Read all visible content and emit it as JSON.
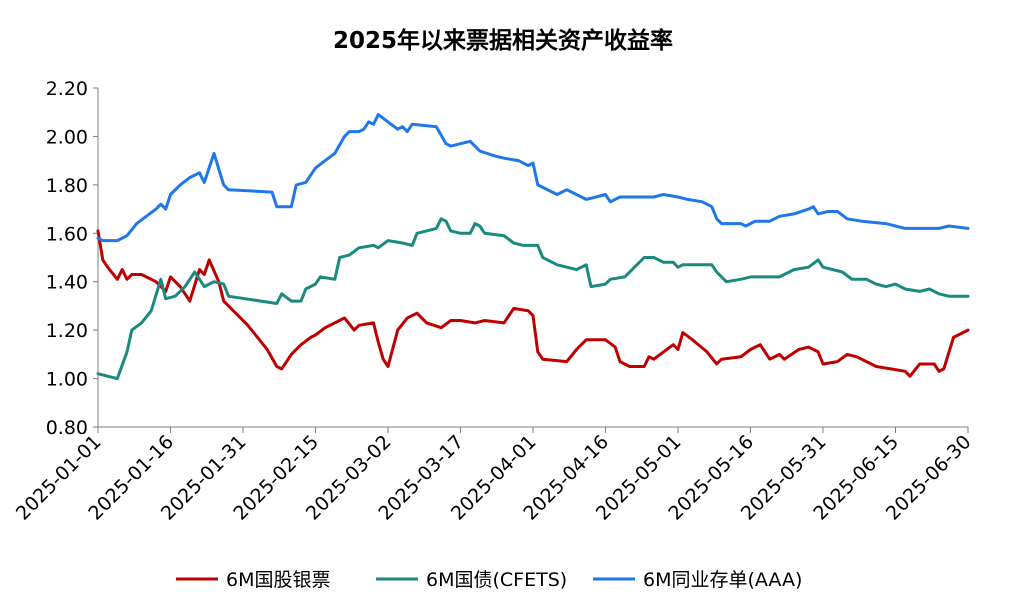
{
  "chart_data": {
    "type": "line",
    "title": "2025年以来票据相关资产收益率",
    "xlabel": "",
    "ylabel": "",
    "ylim": [
      0.8,
      2.2
    ],
    "yticks": [
      "0.80",
      "1.00",
      "1.20",
      "1.40",
      "1.60",
      "1.80",
      "2.00",
      "2.20"
    ],
    "xlim": [
      "2025-01-01",
      "2025-06-30"
    ],
    "xticks": [
      "2025-01-01",
      "2025-01-16",
      "2025-01-31",
      "2025-02-15",
      "2025-03-02",
      "2025-03-17",
      "2025-04-01",
      "2025-04-16",
      "2025-05-01",
      "2025-05-16",
      "2025-05-31",
      "2025-06-15",
      "2025-06-30"
    ],
    "grid": false,
    "legend_position": "bottom",
    "series": [
      {
        "name": "6M国股银票",
        "color": "#C00000",
        "points": [
          [
            "2025-01-01",
            1.61
          ],
          [
            "2025-01-02",
            1.49
          ],
          [
            "2025-01-03",
            1.46
          ],
          [
            "2025-01-05",
            1.41
          ],
          [
            "2025-01-06",
            1.45
          ],
          [
            "2025-01-07",
            1.41
          ],
          [
            "2025-01-08",
            1.43
          ],
          [
            "2025-01-10",
            1.43
          ],
          [
            "2025-01-13",
            1.4
          ],
          [
            "2025-01-15",
            1.36
          ],
          [
            "2025-01-16",
            1.42
          ],
          [
            "2025-01-18",
            1.38
          ],
          [
            "2025-01-20",
            1.32
          ],
          [
            "2025-01-22",
            1.45
          ],
          [
            "2025-01-23",
            1.43
          ],
          [
            "2025-01-24",
            1.49
          ],
          [
            "2025-01-26",
            1.4
          ],
          [
            "2025-01-27",
            1.32
          ],
          [
            "2025-02-01",
            1.22
          ],
          [
            "2025-02-05",
            1.12
          ],
          [
            "2025-02-07",
            1.05
          ],
          [
            "2025-02-08",
            1.04
          ],
          [
            "2025-02-10",
            1.1
          ],
          [
            "2025-02-12",
            1.14
          ],
          [
            "2025-02-14",
            1.17
          ],
          [
            "2025-02-15",
            1.18
          ],
          [
            "2025-02-17",
            1.21
          ],
          [
            "2025-02-19",
            1.23
          ],
          [
            "2025-02-21",
            1.25
          ],
          [
            "2025-02-23",
            1.2
          ],
          [
            "2025-02-24",
            1.22
          ],
          [
            "2025-02-27",
            1.23
          ],
          [
            "2025-02-28",
            1.15
          ],
          [
            "2025-03-01",
            1.08
          ],
          [
            "2025-03-02",
            1.05
          ],
          [
            "2025-03-04",
            1.2
          ],
          [
            "2025-03-06",
            1.25
          ],
          [
            "2025-03-08",
            1.27
          ],
          [
            "2025-03-10",
            1.23
          ],
          [
            "2025-03-13",
            1.21
          ],
          [
            "2025-03-15",
            1.24
          ],
          [
            "2025-03-17",
            1.24
          ],
          [
            "2025-03-20",
            1.23
          ],
          [
            "2025-03-22",
            1.24
          ],
          [
            "2025-03-26",
            1.23
          ],
          [
            "2025-03-28",
            1.29
          ],
          [
            "2025-03-31",
            1.28
          ],
          [
            "2025-04-01",
            1.26
          ],
          [
            "2025-04-02",
            1.11
          ],
          [
            "2025-04-03",
            1.08
          ],
          [
            "2025-04-08",
            1.07
          ],
          [
            "2025-04-10",
            1.12
          ],
          [
            "2025-04-12",
            1.16
          ],
          [
            "2025-04-16",
            1.16
          ],
          [
            "2025-04-18",
            1.13
          ],
          [
            "2025-04-19",
            1.07
          ],
          [
            "2025-04-21",
            1.05
          ],
          [
            "2025-04-24",
            1.05
          ],
          [
            "2025-04-25",
            1.09
          ],
          [
            "2025-04-26",
            1.08
          ],
          [
            "2025-04-28",
            1.11
          ],
          [
            "2025-04-30",
            1.14
          ],
          [
            "2025-05-01",
            1.12
          ],
          [
            "2025-05-02",
            1.19
          ],
          [
            "2025-05-04",
            1.16
          ],
          [
            "2025-05-07",
            1.11
          ],
          [
            "2025-05-09",
            1.06
          ],
          [
            "2025-05-10",
            1.08
          ],
          [
            "2025-05-14",
            1.09
          ],
          [
            "2025-05-16",
            1.12
          ],
          [
            "2025-05-18",
            1.14
          ],
          [
            "2025-05-20",
            1.08
          ],
          [
            "2025-05-22",
            1.1
          ],
          [
            "2025-05-23",
            1.08
          ],
          [
            "2025-05-26",
            1.12
          ],
          [
            "2025-05-28",
            1.13
          ],
          [
            "2025-05-30",
            1.11
          ],
          [
            "2025-05-31",
            1.06
          ],
          [
            "2025-06-03",
            1.07
          ],
          [
            "2025-06-05",
            1.1
          ],
          [
            "2025-06-07",
            1.09
          ],
          [
            "2025-06-09",
            1.07
          ],
          [
            "2025-06-11",
            1.05
          ],
          [
            "2025-06-14",
            1.04
          ],
          [
            "2025-06-17",
            1.03
          ],
          [
            "2025-06-18",
            1.01
          ],
          [
            "2025-06-20",
            1.06
          ],
          [
            "2025-06-23",
            1.06
          ],
          [
            "2025-06-24",
            1.03
          ],
          [
            "2025-06-25",
            1.04
          ],
          [
            "2025-06-27",
            1.17
          ],
          [
            "2025-06-30",
            1.2
          ]
        ]
      },
      {
        "name": "6M国债(CFETS)",
        "color": "#1A8A7E",
        "points": [
          [
            "2025-01-01",
            1.02
          ],
          [
            "2025-01-03",
            1.01
          ],
          [
            "2025-01-05",
            1.0
          ],
          [
            "2025-01-07",
            1.11
          ],
          [
            "2025-01-08",
            1.2
          ],
          [
            "2025-01-10",
            1.23
          ],
          [
            "2025-01-12",
            1.28
          ],
          [
            "2025-01-14",
            1.41
          ],
          [
            "2025-01-15",
            1.33
          ],
          [
            "2025-01-17",
            1.34
          ],
          [
            "2025-01-19",
            1.38
          ],
          [
            "2025-01-21",
            1.44
          ],
          [
            "2025-01-23",
            1.38
          ],
          [
            "2025-01-25",
            1.4
          ],
          [
            "2025-01-27",
            1.39
          ],
          [
            "2025-01-28",
            1.34
          ],
          [
            "2025-02-07",
            1.31
          ],
          [
            "2025-02-08",
            1.35
          ],
          [
            "2025-02-10",
            1.32
          ],
          [
            "2025-02-12",
            1.32
          ],
          [
            "2025-02-13",
            1.37
          ],
          [
            "2025-02-15",
            1.39
          ],
          [
            "2025-02-16",
            1.42
          ],
          [
            "2025-02-19",
            1.41
          ],
          [
            "2025-02-20",
            1.5
          ],
          [
            "2025-02-22",
            1.51
          ],
          [
            "2025-02-24",
            1.54
          ],
          [
            "2025-02-27",
            1.55
          ],
          [
            "2025-02-28",
            1.54
          ],
          [
            "2025-03-02",
            1.57
          ],
          [
            "2025-03-05",
            1.56
          ],
          [
            "2025-03-07",
            1.55
          ],
          [
            "2025-03-08",
            1.6
          ],
          [
            "2025-03-10",
            1.61
          ],
          [
            "2025-03-12",
            1.62
          ],
          [
            "2025-03-13",
            1.66
          ],
          [
            "2025-03-14",
            1.65
          ],
          [
            "2025-03-15",
            1.61
          ],
          [
            "2025-03-17",
            1.6
          ],
          [
            "2025-03-19",
            1.6
          ],
          [
            "2025-03-20",
            1.64
          ],
          [
            "2025-03-21",
            1.63
          ],
          [
            "2025-03-22",
            1.6
          ],
          [
            "2025-03-26",
            1.59
          ],
          [
            "2025-03-28",
            1.56
          ],
          [
            "2025-03-30",
            1.55
          ],
          [
            "2025-04-02",
            1.55
          ],
          [
            "2025-04-03",
            1.5
          ],
          [
            "2025-04-06",
            1.47
          ],
          [
            "2025-04-10",
            1.45
          ],
          [
            "2025-04-12",
            1.47
          ],
          [
            "2025-04-13",
            1.38
          ],
          [
            "2025-04-16",
            1.39
          ],
          [
            "2025-04-17",
            1.41
          ],
          [
            "2025-04-20",
            1.42
          ],
          [
            "2025-04-22",
            1.46
          ],
          [
            "2025-04-24",
            1.5
          ],
          [
            "2025-04-26",
            1.5
          ],
          [
            "2025-04-28",
            1.48
          ],
          [
            "2025-04-30",
            1.48
          ],
          [
            "2025-05-01",
            1.46
          ],
          [
            "2025-05-02",
            1.47
          ],
          [
            "2025-05-08",
            1.47
          ],
          [
            "2025-05-09",
            1.44
          ],
          [
            "2025-05-11",
            1.4
          ],
          [
            "2025-05-14",
            1.41
          ],
          [
            "2025-05-16",
            1.42
          ],
          [
            "2025-05-17",
            1.42
          ],
          [
            "2025-05-22",
            1.42
          ],
          [
            "2025-05-25",
            1.45
          ],
          [
            "2025-05-28",
            1.46
          ],
          [
            "2025-05-30",
            1.49
          ],
          [
            "2025-05-31",
            1.46
          ],
          [
            "2025-06-04",
            1.44
          ],
          [
            "2025-06-06",
            1.41
          ],
          [
            "2025-06-09",
            1.41
          ],
          [
            "2025-06-11",
            1.39
          ],
          [
            "2025-06-13",
            1.38
          ],
          [
            "2025-06-15",
            1.39
          ],
          [
            "2025-06-17",
            1.37
          ],
          [
            "2025-06-20",
            1.36
          ],
          [
            "2025-06-22",
            1.37
          ],
          [
            "2025-06-24",
            1.35
          ],
          [
            "2025-06-26",
            1.34
          ],
          [
            "2025-06-30",
            1.34
          ]
        ]
      },
      {
        "name": "6M同业存单(AAA)",
        "color": "#1F77E9",
        "points": [
          [
            "2025-01-01",
            1.58
          ],
          [
            "2025-01-02",
            1.57
          ],
          [
            "2025-01-05",
            1.57
          ],
          [
            "2025-01-07",
            1.59
          ],
          [
            "2025-01-09",
            1.64
          ],
          [
            "2025-01-11",
            1.67
          ],
          [
            "2025-01-13",
            1.7
          ],
          [
            "2025-01-14",
            1.72
          ],
          [
            "2025-01-15",
            1.7
          ],
          [
            "2025-01-16",
            1.76
          ],
          [
            "2025-01-18",
            1.8
          ],
          [
            "2025-01-20",
            1.83
          ],
          [
            "2025-01-22",
            1.85
          ],
          [
            "2025-01-23",
            1.81
          ],
          [
            "2025-01-25",
            1.93
          ],
          [
            "2025-01-27",
            1.8
          ],
          [
            "2025-01-28",
            1.78
          ],
          [
            "2025-02-06",
            1.77
          ],
          [
            "2025-02-07",
            1.71
          ],
          [
            "2025-02-10",
            1.71
          ],
          [
            "2025-02-11",
            1.8
          ],
          [
            "2025-02-13",
            1.81
          ],
          [
            "2025-02-15",
            1.87
          ],
          [
            "2025-02-17",
            1.9
          ],
          [
            "2025-02-19",
            1.93
          ],
          [
            "2025-02-21",
            2.0
          ],
          [
            "2025-02-22",
            2.02
          ],
          [
            "2025-02-24",
            2.02
          ],
          [
            "2025-02-25",
            2.03
          ],
          [
            "2025-02-26",
            2.06
          ],
          [
            "2025-02-27",
            2.05
          ],
          [
            "2025-02-28",
            2.09
          ],
          [
            "2025-03-02",
            2.06
          ],
          [
            "2025-03-04",
            2.03
          ],
          [
            "2025-03-05",
            2.04
          ],
          [
            "2025-03-06",
            2.02
          ],
          [
            "2025-03-07",
            2.05
          ],
          [
            "2025-03-12",
            2.04
          ],
          [
            "2025-03-14",
            1.97
          ],
          [
            "2025-03-15",
            1.96
          ],
          [
            "2025-03-17",
            1.97
          ],
          [
            "2025-03-19",
            1.98
          ],
          [
            "2025-03-21",
            1.94
          ],
          [
            "2025-03-24",
            1.92
          ],
          [
            "2025-03-26",
            1.91
          ],
          [
            "2025-03-29",
            1.9
          ],
          [
            "2025-03-30",
            1.89
          ],
          [
            "2025-03-31",
            1.88
          ],
          [
            "2025-04-01",
            1.89
          ],
          [
            "2025-04-02",
            1.8
          ],
          [
            "2025-04-05",
            1.77
          ],
          [
            "2025-04-06",
            1.76
          ],
          [
            "2025-04-08",
            1.78
          ],
          [
            "2025-04-10",
            1.76
          ],
          [
            "2025-04-12",
            1.74
          ],
          [
            "2025-04-14",
            1.75
          ],
          [
            "2025-04-16",
            1.76
          ],
          [
            "2025-04-17",
            1.73
          ],
          [
            "2025-04-19",
            1.75
          ],
          [
            "2025-04-26",
            1.75
          ],
          [
            "2025-04-28",
            1.76
          ],
          [
            "2025-05-01",
            1.75
          ],
          [
            "2025-05-03",
            1.74
          ],
          [
            "2025-05-06",
            1.73
          ],
          [
            "2025-05-07",
            1.72
          ],
          [
            "2025-05-08",
            1.71
          ],
          [
            "2025-05-09",
            1.66
          ],
          [
            "2025-05-10",
            1.64
          ],
          [
            "2025-05-14",
            1.64
          ],
          [
            "2025-05-15",
            1.63
          ],
          [
            "2025-05-16",
            1.64
          ],
          [
            "2025-05-17",
            1.65
          ],
          [
            "2025-05-20",
            1.65
          ],
          [
            "2025-05-22",
            1.67
          ],
          [
            "2025-05-25",
            1.68
          ],
          [
            "2025-05-28",
            1.7
          ],
          [
            "2025-05-29",
            1.71
          ],
          [
            "2025-05-30",
            1.68
          ],
          [
            "2025-06-01",
            1.69
          ],
          [
            "2025-06-03",
            1.69
          ],
          [
            "2025-06-05",
            1.66
          ],
          [
            "2025-06-08",
            1.65
          ],
          [
            "2025-06-13",
            1.64
          ],
          [
            "2025-06-15",
            1.63
          ],
          [
            "2025-06-17",
            1.62
          ],
          [
            "2025-06-20",
            1.62
          ],
          [
            "2025-06-24",
            1.62
          ],
          [
            "2025-06-26",
            1.63
          ],
          [
            "2025-06-30",
            1.62
          ]
        ]
      }
    ]
  }
}
